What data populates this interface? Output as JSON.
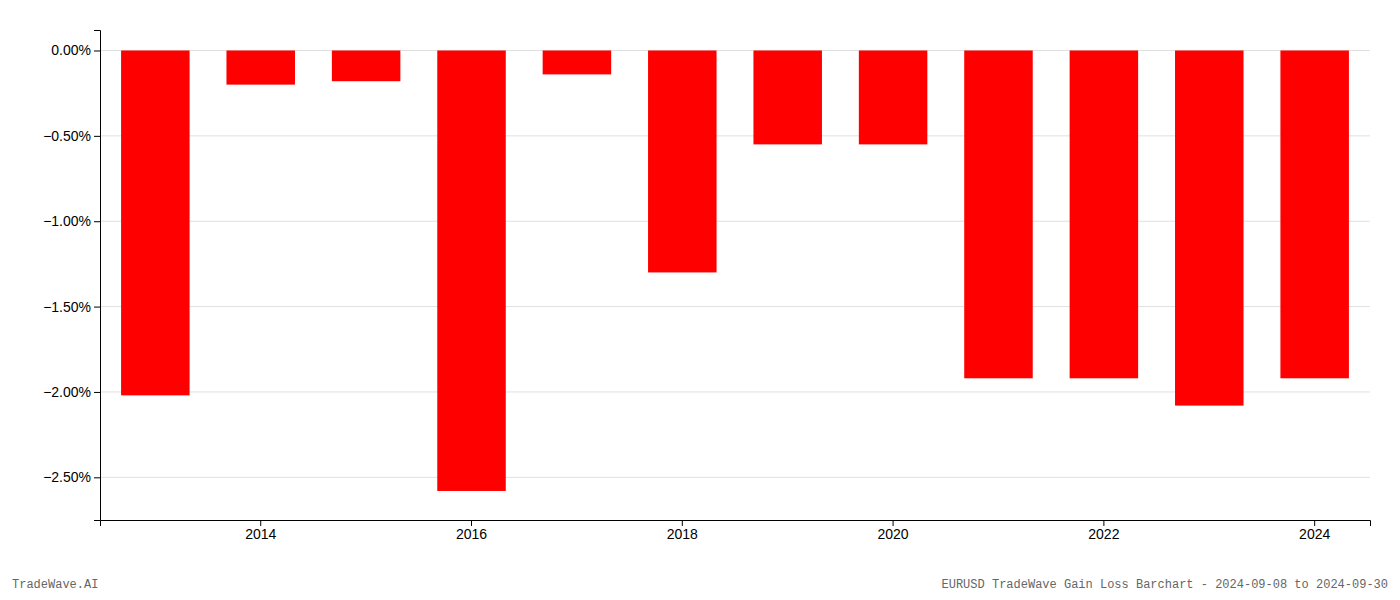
{
  "chart_data": {
    "type": "bar",
    "categories": [
      null,
      "2014",
      null,
      "2016",
      null,
      "2018",
      null,
      "2020",
      null,
      "2022",
      null,
      "2024"
    ],
    "values": [
      -2.02,
      -0.2,
      -0.18,
      -2.58,
      -0.14,
      -1.3,
      -0.55,
      -0.55,
      -1.92,
      -1.92,
      -2.08,
      -1.92
    ],
    "color": "#ff0000",
    "ylim": [
      -2.75,
      0.12
    ],
    "yticks": [
      {
        "value": 0.0,
        "label": "0.00%"
      },
      {
        "value": -0.5,
        "label": "−0.50%"
      },
      {
        "value": -1.0,
        "label": "−1.00%"
      },
      {
        "value": -1.5,
        "label": "−1.50%"
      },
      {
        "value": -2.0,
        "label": "−2.00%"
      },
      {
        "value": -2.5,
        "label": "−2.50%"
      }
    ],
    "grid": true,
    "annotations": [
      "TradeWave.AI",
      "EURUSD TradeWave Gain Loss Barchart - 2024-09-08 to 2024-09-30"
    ]
  }
}
